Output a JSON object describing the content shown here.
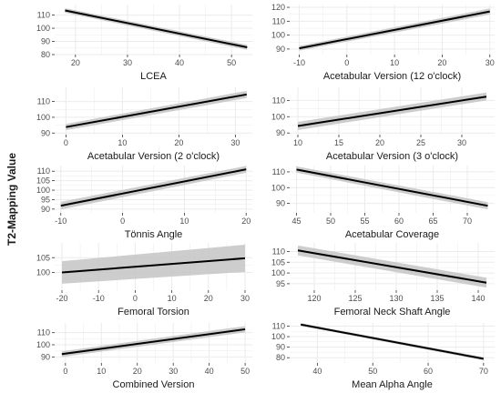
{
  "figure": {
    "ylabel": "T2-Mapping Value",
    "colors": {
      "panel_bg": "#ffffff",
      "grid": "#ebebeb",
      "band": "#c4c4c4",
      "line": "#000000",
      "tick_text": "#4d4d4d",
      "label_text": "#1a1a1a"
    }
  },
  "chart_data": [
    {
      "type": "line",
      "xlabel": "LCEA",
      "xlim": [
        16,
        54
      ],
      "ylim": [
        80,
        118
      ],
      "xticks": [
        20,
        30,
        40,
        50
      ],
      "yticks": [
        80,
        90,
        100,
        110
      ],
      "x": [
        18,
        53
      ],
      "y": [
        113.5,
        85.5
      ],
      "ci_lower": [
        111.8,
        83.6
      ],
      "ci_upper": [
        115.2,
        87.4
      ],
      "grid": true
    },
    {
      "type": "line",
      "xlabel": "Acetabular Version (12 o'clock)",
      "xlim": [
        -12,
        31
      ],
      "ylim": [
        86,
        122
      ],
      "xticks": [
        -10,
        0,
        10,
        20,
        30
      ],
      "yticks": [
        90,
        100,
        110,
        120
      ],
      "x": [
        -10,
        30
      ],
      "y": [
        90.5,
        117
      ],
      "ci_lower": [
        88.8,
        114.8
      ],
      "ci_upper": [
        92.2,
        119.2
      ],
      "grid": true
    },
    {
      "type": "line",
      "xlabel": "Acetabular Version (2 o'clock)",
      "xlim": [
        -2,
        33
      ],
      "ylim": [
        89,
        119
      ],
      "xticks": [
        0,
        10,
        20,
        30
      ],
      "yticks": [
        90,
        100,
        110
      ],
      "x": [
        0,
        32
      ],
      "y": [
        93.8,
        114.5
      ],
      "ci_lower": [
        91.8,
        112.2
      ],
      "ci_upper": [
        95.8,
        116.8
      ],
      "grid": true
    },
    {
      "type": "line",
      "xlabel": "Acetabular Version (3 o'clock)",
      "xlim": [
        9,
        34
      ],
      "ylim": [
        89,
        118
      ],
      "xticks": [
        10,
        15,
        20,
        25,
        30
      ],
      "yticks": [
        90,
        100,
        110
      ],
      "x": [
        10,
        33
      ],
      "y": [
        94.3,
        112.3
      ],
      "ci_lower": [
        91.8,
        110
      ],
      "ci_upper": [
        96.8,
        114.8
      ],
      "grid": true
    },
    {
      "type": "line",
      "xlabel": "Tönnis Angle",
      "xlim": [
        -11,
        21
      ],
      "ylim": [
        88,
        113
      ],
      "xticks": [
        -10,
        0,
        10,
        20
      ],
      "yticks": [
        90,
        95,
        100,
        105,
        110
      ],
      "x": [
        -10,
        20
      ],
      "y": [
        91.8,
        111
      ],
      "ci_lower": [
        89.8,
        109.2
      ],
      "ci_upper": [
        93.8,
        112.8
      ],
      "grid": true
    },
    {
      "type": "line",
      "xlabel": "Acetabular Coverage",
      "xlim": [
        44,
        74
      ],
      "ylim": [
        84,
        114
      ],
      "xticks": [
        45,
        50,
        55,
        60,
        65,
        70
      ],
      "yticks": [
        90,
        100,
        110
      ],
      "x": [
        45,
        73
      ],
      "y": [
        111.5,
        88.5
      ],
      "ci_lower": [
        109.5,
        86.2
      ],
      "ci_upper": [
        113.5,
        90.8
      ],
      "grid": true
    },
    {
      "type": "line",
      "xlabel": "Femoral Torsion",
      "xlim": [
        -22,
        32
      ],
      "ylim": [
        94,
        110
      ],
      "xticks": [
        -20,
        -10,
        0,
        10,
        20,
        30
      ],
      "yticks": [
        100,
        105
      ],
      "x": [
        -20,
        30
      ],
      "y": [
        100,
        104.8
      ],
      "ci_lower": [
        96.2,
        100.2
      ],
      "ci_upper": [
        103.8,
        109.4
      ],
      "grid": true
    },
    {
      "type": "line",
      "xlabel": "Femoral Neck Shaft Angle",
      "xlim": [
        117,
        142
      ],
      "ylim": [
        92,
        114
      ],
      "xticks": [
        120,
        125,
        130,
        135,
        140
      ],
      "yticks": [
        95,
        100,
        105,
        110
      ],
      "x": [
        118,
        141
      ],
      "y": [
        110.5,
        95.5
      ],
      "ci_lower": [
        108.2,
        93.2
      ],
      "ci_upper": [
        112.8,
        97.8
      ],
      "grid": true
    },
    {
      "type": "line",
      "xlabel": "Combined Version",
      "xlim": [
        -3,
        52
      ],
      "ylim": [
        85,
        118
      ],
      "xticks": [
        0,
        10,
        20,
        30,
        40,
        50
      ],
      "yticks": [
        90,
        100,
        110
      ],
      "x": [
        -1,
        50
      ],
      "y": [
        92.3,
        112.8
      ],
      "ci_lower": [
        90,
        110.2
      ],
      "ci_upper": [
        94.6,
        115.4
      ],
      "grid": true
    },
    {
      "type": "line",
      "xlabel": "Mean Alpha Angle",
      "xlim": [
        35,
        72
      ],
      "ylim": [
        75,
        113
      ],
      "xticks": [
        40,
        50,
        60,
        70
      ],
      "yticks": [
        80,
        90,
        100,
        110
      ],
      "x": [
        37,
        70
      ],
      "y": [
        111.5,
        79
      ],
      "ci_lower": [
        110.2,
        77.5
      ],
      "ci_upper": [
        112.8,
        80.5
      ],
      "grid": true
    }
  ]
}
